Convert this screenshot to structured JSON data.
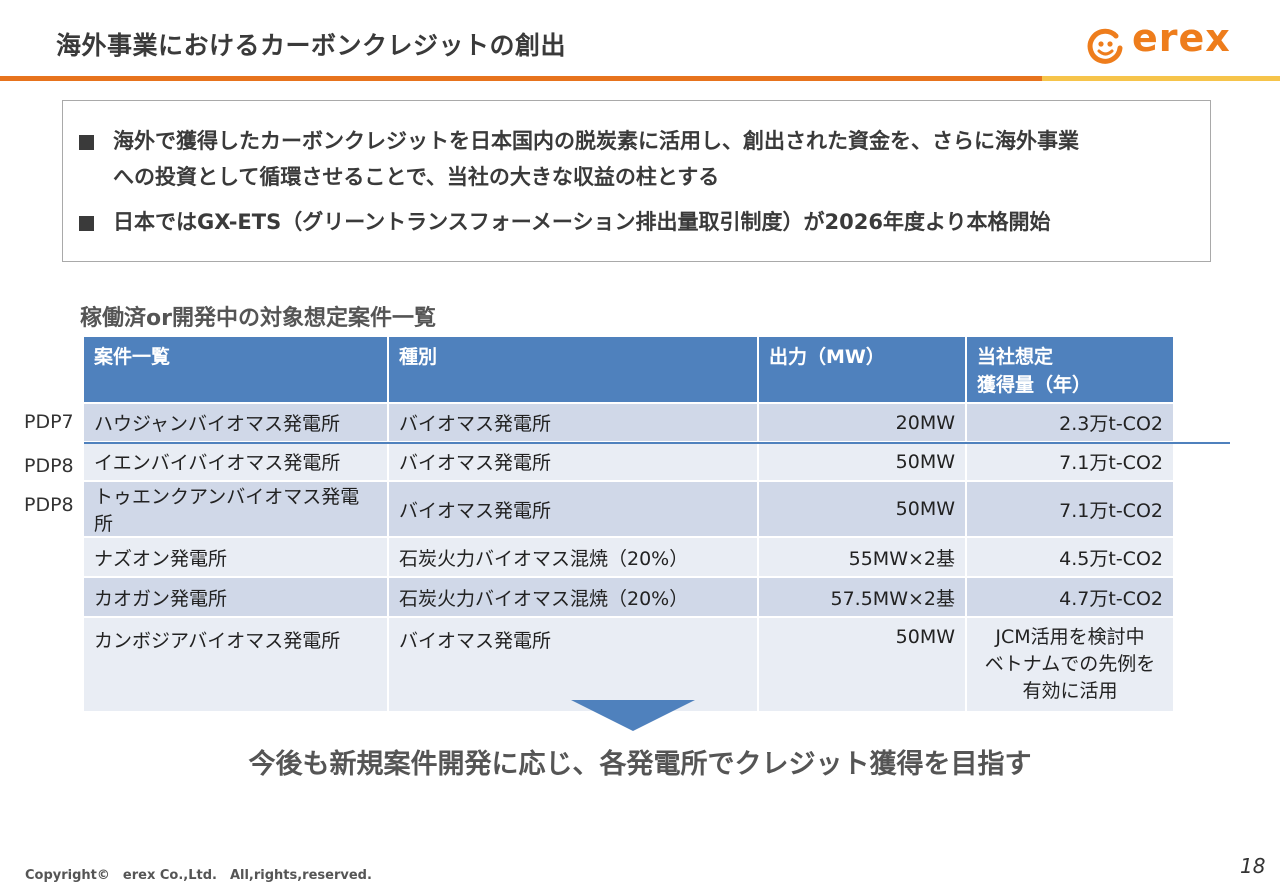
{
  "header": {
    "title": "海外事業におけるカーボンクレジットの創出",
    "logo_text": "erex",
    "accent": "#e7731d",
    "secondary_accent": "#f6c44a"
  },
  "bullets": [
    {
      "line1": "海外で獲得したカーボンクレジットを日本国内の脱炭素に活用し、創出された資金を、さらに海外事業",
      "line2": "への投資として循環させることで、当社の大きな収益の柱とする"
    },
    {
      "line1": "日本ではGX-ETS（グリーントランスフォーメーション排出量取引制度）が2026年度より本格開始"
    }
  ],
  "table": {
    "heading": "稼働済or開発中の対象想定案件一覧",
    "headers": {
      "name": "案件一覧",
      "type": "種別",
      "output": "出力（MW）",
      "credit_line1": "当社想定",
      "credit_line2": "獲得量（年）"
    },
    "rows": [
      {
        "pdp": "PDP7",
        "name": "ハウジャンバイオマス発電所",
        "type": "バイオマス発電所",
        "output": "20MW",
        "credit": "2.3万t-CO2"
      },
      {
        "pdp": "PDP8",
        "name": "イエンバイバイオマス発電所",
        "type": "バイオマス発電所",
        "output": "50MW",
        "credit": "7.1万t-CO2"
      },
      {
        "pdp": "PDP8",
        "name": "トゥエンクアンバイオマス発電所",
        "type": "バイオマス発電所",
        "output": "50MW",
        "credit": "7.1万t-CO2"
      },
      {
        "pdp": "",
        "name": "ナズオン発電所",
        "type": "石炭火力バイオマス混焼（20%）",
        "output": "55MW×2基",
        "credit": "4.5万t-CO2"
      },
      {
        "pdp": "",
        "name": "カオガン発電所",
        "type": "石炭火力バイオマス混焼（20%）",
        "output": "57.5MW×2基",
        "credit": "4.7万t-CO2"
      }
    ],
    "last_row": {
      "name": "カンボジアバイオマス発電所",
      "type": "バイオマス発電所",
      "output": "50MW",
      "credit_lines": [
        "JCM活用を検討中",
        "ベトナムでの先例を",
        "有効に活用"
      ]
    }
  },
  "conclusion": "今後も新規案件開発に応じ、各発電所でクレジット獲得を目指す",
  "footer": {
    "copyright": "Copyright©　erex Co.,Ltd.　All,rights,reserved.",
    "page": "18"
  }
}
